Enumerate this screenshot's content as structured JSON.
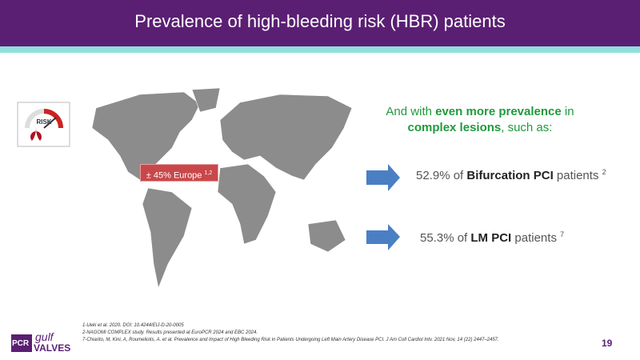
{
  "header": {
    "title": "Prevalence of high-bleeding risk (HBR) patients"
  },
  "gauge": {
    "label": "RISK"
  },
  "map_label": {
    "text": "± 45% Europe",
    "sup": "1,2"
  },
  "intro": {
    "part1": "And with ",
    "bold1": "even more prevalence",
    "part2": " in ",
    "bold2": "complex lesions",
    "part3": ", such as:"
  },
  "stats": [
    {
      "pre": "52.9% of ",
      "bold": "Bifurcation PCI",
      "post": " patients",
      "sup": "2"
    },
    {
      "pre": "55.3% of ",
      "bold": "LM PCI",
      "post": " patients",
      "sup": "7"
    }
  ],
  "references": [
    "1-Ueki et al. 2020. DOI: 10.4244/EIJ-D-20-0005",
    "2-NAGOMI COMPLEX study. Results presented at EuroPCR 2024 and EBC 2024.",
    "7-Chiarito, M, Kini, A, Roumeliotis, A. et al. Prevalence and Impact of High Bleeding Risk in Patients Undergoing Left Main Artery Disease PCI. J Am Coll Cardiol Intv. 2021 Nov, 14 (22) 2447–2457."
  ],
  "logo": {
    "mark": "PCR",
    "top": "gulf",
    "bottom": "VALVES"
  },
  "page_number": "19"
}
